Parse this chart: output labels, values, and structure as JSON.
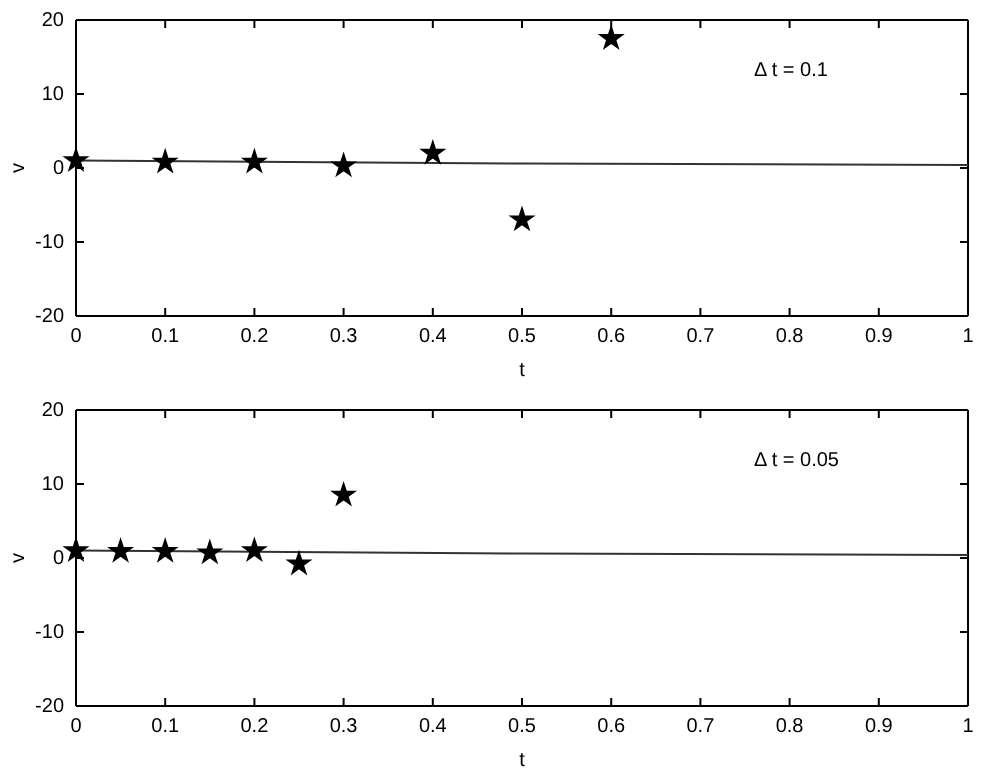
{
  "chart_data": [
    {
      "type": "scatter",
      "xlabel": "t",
      "ylabel": "v",
      "annotations": [
        "Δ t = 0.1"
      ],
      "xlim": [
        0,
        1
      ],
      "ylim": [
        -20,
        20
      ],
      "xticks": [
        0,
        0.1,
        0.2,
        0.3,
        0.4,
        0.5,
        0.6,
        0.7,
        0.8,
        0.9,
        1
      ],
      "yticks": [
        -20,
        -10,
        0,
        10,
        20
      ],
      "grid": false,
      "series": [
        {
          "type": "line",
          "color": "#333333",
          "marker": "none",
          "line_style": "solid",
          "x": [
            0,
            0.5,
            1
          ],
          "values": [
            1,
            0.6,
            0.4
          ]
        },
        {
          "type": "scatter",
          "color": "#000000",
          "marker": "star",
          "x": [
            0,
            0.1,
            0.2,
            0.3,
            0.4,
            0.5,
            0.6
          ],
          "values": [
            1,
            0.8,
            0.8,
            0.3,
            2,
            -7,
            17.5
          ]
        }
      ]
    },
    {
      "type": "scatter",
      "xlabel": "t",
      "ylabel": "v",
      "annotations": [
        "Δ t = 0.05"
      ],
      "xlim": [
        0,
        1
      ],
      "ylim": [
        -20,
        20
      ],
      "xticks": [
        0,
        0.1,
        0.2,
        0.3,
        0.4,
        0.5,
        0.6,
        0.7,
        0.8,
        0.9,
        1
      ],
      "yticks": [
        -20,
        -10,
        0,
        10,
        20
      ],
      "grid": false,
      "series": [
        {
          "type": "line",
          "color": "#333333",
          "marker": "none",
          "line_style": "solid",
          "x": [
            0,
            0.5,
            1
          ],
          "values": [
            1,
            0.6,
            0.4
          ]
        },
        {
          "type": "scatter",
          "color": "#000000",
          "marker": "star",
          "x": [
            0,
            0.05,
            0.1,
            0.15,
            0.2,
            0.25,
            0.3
          ],
          "values": [
            1,
            0.9,
            0.9,
            0.7,
            1,
            -0.8,
            8.5
          ]
        }
      ]
    }
  ]
}
